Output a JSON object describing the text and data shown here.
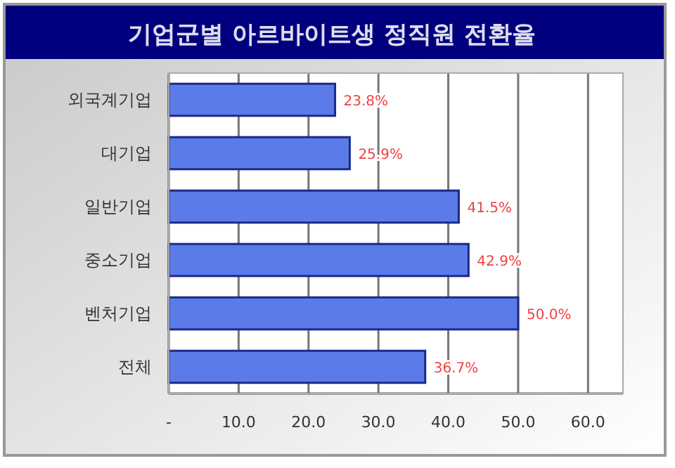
{
  "chart_data": {
    "type": "bar",
    "orientation": "horizontal",
    "title": "기업군별 아르바이트생 정직원 전환율",
    "categories": [
      "외국계기업",
      "대기업",
      "일반기업",
      "중소기업",
      "벤처기업",
      "전체"
    ],
    "values": [
      23.8,
      25.9,
      41.5,
      42.9,
      50.0,
      36.7
    ],
    "value_labels": [
      "23.8%",
      "25.9%",
      "41.5%",
      "42.9%",
      "50.0%",
      "36.7%"
    ],
    "color": "#5b7be8",
    "xlim": [
      0,
      65
    ],
    "xticks": [
      {
        "value": 0,
        "label": "-"
      },
      {
        "value": 10,
        "label": "10.0"
      },
      {
        "value": 20,
        "label": "20.0"
      },
      {
        "value": 30,
        "label": "30.0"
      },
      {
        "value": 40,
        "label": "40.0"
      },
      {
        "value": 50,
        "label": "50.0"
      },
      {
        "value": 60,
        "label": "60.0"
      }
    ],
    "grid": "x"
  }
}
